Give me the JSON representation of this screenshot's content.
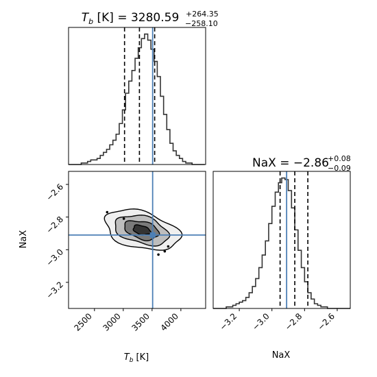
{
  "chart_data": {
    "type": "corner",
    "colors": {
      "truth": "#4C7FB5",
      "hist": "#333333",
      "quantile": "#000000",
      "frame": "#000000"
    },
    "parameters": [
      {
        "key": "Tb",
        "title_main": "T",
        "title_sub": "b",
        "title_rest": " [K] = 3280.59",
        "title_up": "+264.35",
        "title_down": "−258.10",
        "axis_main": "T",
        "axis_sub": "b",
        "axis_rest": " [K]",
        "range": [
          2050,
          4430
        ],
        "ticks": [
          2500,
          3000,
          3500,
          4000
        ],
        "tick_labels": [
          "2500",
          "3000",
          "3500",
          "4000"
        ],
        "truth": 3510,
        "quantiles": [
          3022,
          3280.59,
          3545
        ],
        "hist": {
          "bin_start": 2050,
          "bin_width": 55,
          "counts": [
            0,
            0,
            0,
            0,
            1,
            1,
            2,
            3,
            3,
            4,
            6,
            8,
            10,
            13,
            16,
            20,
            27,
            36,
            47,
            55,
            62,
            70,
            77,
            83,
            86,
            82,
            76,
            68,
            58,
            45,
            33,
            23,
            14,
            9,
            6,
            4,
            2,
            1,
            1,
            0,
            0,
            0,
            0
          ]
        }
      },
      {
        "key": "NaX",
        "title_text": "NaX = −2.86",
        "title_up": "+0.08",
        "title_down": "−0.09",
        "axis_label": "NaX",
        "range": [
          -3.36,
          -2.52
        ],
        "ticks": [
          -3.2,
          -3.0,
          -2.8,
          -2.6
        ],
        "tick_labels": [
          "−3.2",
          "−3.0",
          "−2.8",
          "−2.6"
        ],
        "truth": -2.91,
        "quantiles": [
          -2.95,
          -2.86,
          -2.78
        ],
        "hist": {
          "bin_start": -3.36,
          "bin_width": 0.02,
          "counts": [
            0,
            0,
            0,
            0,
            1,
            1,
            2,
            3,
            4,
            5,
            7,
            10,
            14,
            19,
            26,
            34,
            43,
            54,
            65,
            74,
            80,
            83,
            82,
            75,
            64,
            50,
            37,
            26,
            17,
            10,
            6,
            3,
            2,
            1,
            1,
            0,
            0,
            0,
            0,
            0,
            0,
            0
          ]
        }
      }
    ],
    "joint": {
      "center": [
        3320,
        -2.88
      ],
      "levels": [
        {
          "rx": 650,
          "ry": 0.115,
          "fill": "#efefef"
        },
        {
          "rx": 470,
          "ry": 0.085,
          "fill": "#bdbdbd"
        },
        {
          "rx": 300,
          "ry": 0.055,
          "fill": "#7a7a7a"
        },
        {
          "rx": 150,
          "ry": 0.028,
          "fill": "#333333"
        }
      ],
      "tilt": -6.95e-05,
      "outliers": [
        [
          2720,
          -2.77
        ],
        [
          3010,
          -2.81
        ],
        [
          3720,
          -3.01
        ],
        [
          3780,
          -2.98
        ],
        [
          3610,
          -3.03
        ]
      ]
    }
  }
}
